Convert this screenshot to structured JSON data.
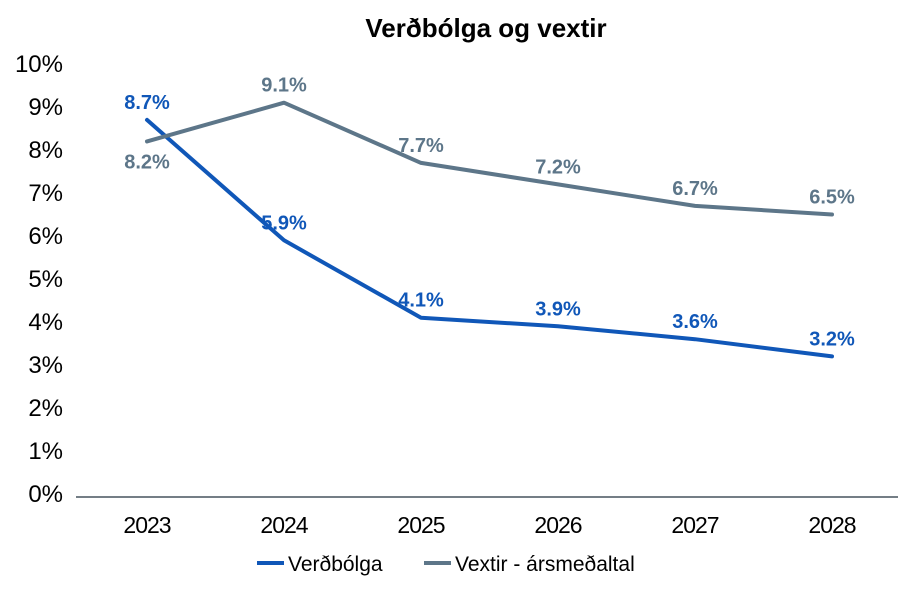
{
  "chart_data": {
    "type": "line",
    "title": "Verðbólga og vextir",
    "categories": [
      "2023",
      "2024",
      "2025",
      "2026",
      "2027",
      "2028"
    ],
    "ytick_labels": [
      "0%",
      "1%",
      "2%",
      "3%",
      "4%",
      "5%",
      "6%",
      "7%",
      "8%",
      "9%",
      "10%"
    ],
    "ylim": [
      0,
      10
    ],
    "grid": false,
    "legend_position": "bottom",
    "axis_color": "#46545F",
    "series": [
      {
        "name": "Verðbólga",
        "color": "#1057B8",
        "values": [
          8.7,
          5.9,
          4.1,
          3.9,
          3.6,
          3.2
        ],
        "labels": [
          "8.7%",
          "5.9%",
          "4.1%",
          "3.9%",
          "3.6%",
          "3.2%"
        ],
        "label_positions": [
          "above",
          "above",
          "above",
          "above",
          "above",
          "above"
        ]
      },
      {
        "name": "Vextir - ársmeðaltal",
        "color": "#5D7689",
        "values": [
          8.2,
          9.1,
          7.7,
          7.2,
          6.7,
          6.5
        ],
        "labels": [
          "8.2%",
          "9.1%",
          "7.7%",
          "7.2%",
          "6.7%",
          "6.5%"
        ],
        "label_positions": [
          "below",
          "above",
          "above",
          "above",
          "above",
          "above"
        ]
      }
    ]
  }
}
